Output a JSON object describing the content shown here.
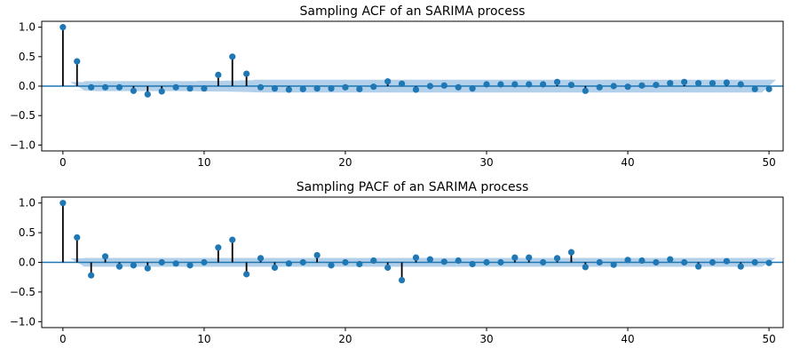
{
  "chart_data": [
    {
      "type": "stem",
      "title": "Sampling ACF of an SARIMA process",
      "xlim": [
        -1.5,
        51
      ],
      "ylim": [
        -1.1,
        1.1
      ],
      "xticks": [
        0,
        10,
        20,
        30,
        40,
        50
      ],
      "yticks": [
        1.0,
        0.5,
        0.0,
        -0.5,
        -1.0
      ],
      "ytick_labels": [
        "1.0",
        "0.5",
        "0.0",
        "−0.5",
        "−1.0"
      ],
      "lags": [
        0,
        1,
        2,
        3,
        4,
        5,
        6,
        7,
        8,
        9,
        10,
        11,
        12,
        13,
        14,
        15,
        16,
        17,
        18,
        19,
        20,
        21,
        22,
        23,
        24,
        25,
        26,
        27,
        28,
        29,
        30,
        31,
        32,
        33,
        34,
        35,
        36,
        37,
        38,
        39,
        40,
        41,
        42,
        43,
        44,
        45,
        46,
        47,
        48,
        49,
        50
      ],
      "values": [
        1.0,
        0.42,
        -0.02,
        -0.02,
        -0.02,
        -0.08,
        -0.14,
        -0.09,
        -0.02,
        -0.04,
        -0.04,
        0.19,
        0.5,
        0.21,
        -0.02,
        -0.04,
        -0.06,
        -0.05,
        -0.04,
        -0.04,
        -0.02,
        -0.05,
        -0.01,
        0.08,
        0.04,
        -0.06,
        0.0,
        0.01,
        -0.02,
        -0.04,
        0.03,
        0.03,
        0.03,
        0.03,
        0.03,
        0.07,
        0.02,
        -0.08,
        -0.02,
        0.0,
        -0.01,
        0.01,
        0.02,
        0.05,
        0.07,
        0.05,
        0.05,
        0.06,
        0.03,
        -0.05,
        -0.05
      ],
      "conf_band": [
        0.0,
        0.07,
        0.085,
        0.085,
        0.085,
        0.085,
        0.085,
        0.085,
        0.085,
        0.085,
        0.09,
        0.09,
        0.095,
        0.1,
        0.11,
        0.11,
        0.11,
        0.11,
        0.11,
        0.11,
        0.11,
        0.11,
        0.11,
        0.11,
        0.11,
        0.11,
        0.11,
        0.11,
        0.11,
        0.11,
        0.11,
        0.11,
        0.11,
        0.11,
        0.11,
        0.11,
        0.11,
        0.11,
        0.11,
        0.11,
        0.11,
        0.11,
        0.11,
        0.11,
        0.11,
        0.11,
        0.11,
        0.11,
        0.11,
        0.11,
        0.11
      ],
      "colors": {
        "marker": "#1f77b4",
        "stem": "#000000",
        "band": "#a6c8e6",
        "zero_line": "#1f77b4"
      }
    },
    {
      "type": "stem",
      "title": "Sampling PACF of an SARIMA process",
      "xlim": [
        -1.5,
        51
      ],
      "ylim": [
        -1.1,
        1.1
      ],
      "xticks": [
        0,
        10,
        20,
        30,
        40,
        50
      ],
      "yticks": [
        1.0,
        0.5,
        0.0,
        -0.5,
        -1.0
      ],
      "ytick_labels": [
        "1.0",
        "0.5",
        "0.0",
        "−0.5",
        "−1.0"
      ],
      "lags": [
        0,
        1,
        2,
        3,
        4,
        5,
        6,
        7,
        8,
        9,
        10,
        11,
        12,
        13,
        14,
        15,
        16,
        17,
        18,
        19,
        20,
        21,
        22,
        23,
        24,
        25,
        26,
        27,
        28,
        29,
        30,
        31,
        32,
        33,
        34,
        35,
        36,
        37,
        38,
        39,
        40,
        41,
        42,
        43,
        44,
        45,
        46,
        47,
        48,
        49,
        50
      ],
      "values": [
        1.0,
        0.42,
        -0.22,
        0.1,
        -0.07,
        -0.05,
        -0.1,
        0.0,
        -0.02,
        -0.05,
        0.0,
        0.25,
        0.38,
        -0.2,
        0.07,
        -0.09,
        -0.02,
        0.0,
        0.12,
        -0.05,
        0.0,
        -0.03,
        0.03,
        -0.09,
        -0.3,
        0.08,
        0.05,
        0.01,
        0.03,
        -0.03,
        0.0,
        0.0,
        0.08,
        0.08,
        0.0,
        0.07,
        0.17,
        -0.08,
        0.0,
        -0.04,
        0.04,
        0.03,
        0.0,
        0.05,
        0.0,
        -0.07,
        0.0,
        0.02,
        -0.07,
        0.0,
        -0.01
      ],
      "conf_band": [
        0.0,
        0.07,
        0.075,
        0.075,
        0.075,
        0.075,
        0.075,
        0.075,
        0.075,
        0.075,
        0.075,
        0.075,
        0.075,
        0.075,
        0.075,
        0.075,
        0.075,
        0.075,
        0.075,
        0.075,
        0.075,
        0.075,
        0.075,
        0.075,
        0.075,
        0.075,
        0.075,
        0.075,
        0.075,
        0.075,
        0.075,
        0.075,
        0.075,
        0.075,
        0.075,
        0.075,
        0.075,
        0.075,
        0.075,
        0.075,
        0.075,
        0.075,
        0.075,
        0.075,
        0.075,
        0.075,
        0.075,
        0.075,
        0.075,
        0.075,
        0.075
      ],
      "colors": {
        "marker": "#1f77b4",
        "stem": "#000000",
        "band": "#a6c8e6",
        "zero_line": "#1f77b4"
      }
    }
  ]
}
